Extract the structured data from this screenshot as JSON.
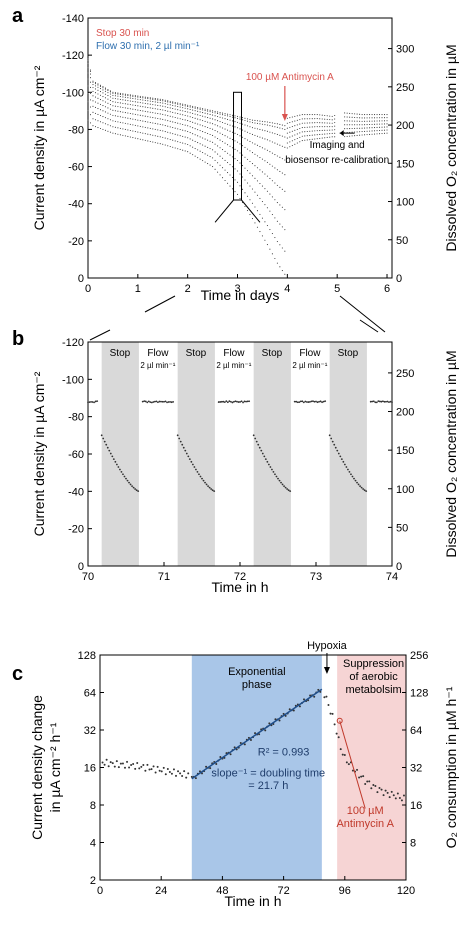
{
  "chart_data": [
    {
      "panel": "a",
      "type": "scatter",
      "xlabel": "Time in days",
      "ylabel_left": "Current density in µA cm⁻²",
      "ylabel_right": "Dissolved O₂ concentration in µM",
      "xlim": [
        0,
        6.1
      ],
      "ylim_left": [
        0,
        -140
      ],
      "ylim_right": [
        0,
        340
      ],
      "x_ticks": [
        "0",
        "1",
        "2",
        "3",
        "4",
        "5",
        "6"
      ],
      "y_left_ticks": [
        "0",
        "-20",
        "-40",
        "-60",
        "-80",
        "-100",
        "-120",
        "-140"
      ],
      "y_right_ticks": [
        "0",
        "50",
        "100",
        "150",
        "200",
        "250",
        "300"
      ],
      "legend": [
        {
          "label": "Stop 30 min",
          "color": "#d9534f"
        },
        {
          "label": "Flow 30 min, 2 µl min⁻¹",
          "color": "#2e6fae"
        }
      ],
      "annotations": {
        "antimycin": "100 µM Antimycin A",
        "imaging_line1": "Imaging and",
        "imaging_line2": "biosensor re-calibration"
      },
      "envelope_days": [
        0.0,
        0.1,
        0.5,
        1.0,
        1.5,
        2.0,
        2.5,
        3.0,
        3.3,
        3.6,
        3.8,
        3.95
      ],
      "upper_envelope": [
        -118,
        -106,
        -100,
        -98,
        -96,
        -93,
        -90,
        -87,
        -85,
        -84,
        -83,
        -82
      ],
      "lower_envelope": [
        -85,
        -82,
        -78,
        -75,
        -72,
        -68,
        -60,
        -45,
        -32,
        -18,
        -8,
        -2
      ],
      "after_antimycin_days": [
        4.0,
        4.3,
        4.6,
        4.9,
        5.1,
        5.5,
        6.0
      ],
      "after_antimycin_upper": [
        -86,
        -88,
        -88,
        -87,
        -89,
        -88,
        -88
      ],
      "after_antimycin_lower": [
        -70,
        -74,
        -75,
        -76,
        -76,
        -77,
        -78
      ]
    },
    {
      "panel": "b",
      "type": "scatter",
      "xlabel": "Time in h",
      "ylabel_left": "Current density in µA cm⁻²",
      "ylabel_right": "Dissolved O₂ concentration in µM",
      "xlim": [
        70,
        74
      ],
      "ylim_left": [
        0,
        -120
      ],
      "ylim_right": [
        0,
        290
      ],
      "x_ticks": [
        "70",
        "71",
        "72",
        "73",
        "74"
      ],
      "y_left_ticks": [
        "0",
        "-20",
        "-40",
        "-60",
        "-80",
        "-100",
        "-120"
      ],
      "y_right_ticks": [
        "0",
        "50",
        "100",
        "150",
        "200",
        "250"
      ],
      "stop_intervals": [
        [
          70.18,
          70.67
        ],
        [
          71.18,
          71.67
        ],
        [
          72.18,
          72.67
        ],
        [
          73.18,
          73.67
        ]
      ],
      "phase_labels": [
        {
          "text": "Stop",
          "x": 70.42
        },
        {
          "text": "Flow",
          "sub": "2 µl min⁻¹",
          "x": 70.92
        },
        {
          "text": "Stop",
          "x": 71.42
        },
        {
          "text": "Flow",
          "sub": "2 µl min⁻¹",
          "x": 71.92
        },
        {
          "text": "Stop",
          "x": 72.42
        },
        {
          "text": "Flow",
          "sub": "2 µl min⁻¹",
          "x": 72.92
        },
        {
          "text": "Stop",
          "x": 73.42
        }
      ],
      "flow_level": -88,
      "stop_start_level": -70,
      "stop_end_level": -40
    },
    {
      "panel": "c",
      "type": "scatter",
      "xlabel": "Time in h",
      "ylabel_left_line1": "Current density change",
      "ylabel_left_line2": "in µA cm⁻² h⁻¹",
      "ylabel_right": "O₂ consumption in µM h⁻¹",
      "xlim": [
        0,
        120
      ],
      "ylim_left_log2": [
        2,
        128
      ],
      "ylim_right_log2": [
        4,
        256
      ],
      "x_ticks": [
        "0",
        "24",
        "48",
        "72",
        "96",
        "120"
      ],
      "y_left_ticks": [
        "2",
        "4",
        "8",
        "16",
        "32",
        "64",
        "128"
      ],
      "y_right_ticks": [
        "8",
        "16",
        "32",
        "64",
        "128",
        "256"
      ],
      "regions": [
        {
          "label1": "Exponential",
          "label2": "phase",
          "x0": 36,
          "x1": 87,
          "color": "#a9c6e8"
        },
        {
          "label1": "Suppression",
          "label2": "of aerobic",
          "label3": "metabolsim",
          "x0": 93,
          "x1": 120,
          "color": "#f6d4d4"
        }
      ],
      "fit": {
        "r2_label": "R² = 0.993",
        "slope_line1": "slope⁻¹ = doubling time",
        "slope_line2": "= 21.7 h",
        "x0": 36,
        "y0": 13,
        "x1": 87,
        "y1": 68
      },
      "hypoxia_label": "Hypoxia",
      "antimycin_line1": "100 µM",
      "antimycin_line2": "Antimycin A",
      "baseline_x": [
        2,
        6,
        10,
        14,
        18,
        22,
        26,
        30,
        34
      ],
      "baseline_y": [
        17.5,
        17.0,
        16.8,
        16.5,
        16.0,
        15.5,
        15.0,
        14.5,
        14.0
      ],
      "late_x": [
        88,
        90,
        92,
        94,
        96,
        100,
        104,
        108,
        112,
        116,
        119
      ],
      "late_y": [
        62,
        48,
        36,
        24,
        19,
        15,
        12.5,
        11,
        10,
        9.5,
        9
      ]
    }
  ]
}
